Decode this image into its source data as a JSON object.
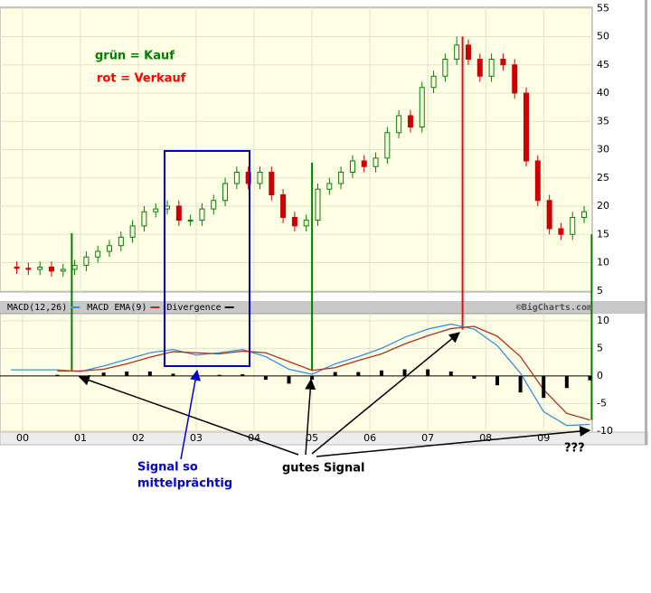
{
  "chart_data": [
    {
      "type": "candlestick",
      "xlim": [
        1999.61,
        2009.84
      ],
      "xticks": [
        2000,
        2001,
        2002,
        2003,
        2004,
        2005,
        2006,
        2007,
        2008,
        2009
      ],
      "ylim": [
        4.8,
        55.2
      ],
      "yticks": [
        5,
        10,
        15,
        20,
        25,
        30,
        35,
        40,
        45,
        50,
        55
      ],
      "grid": true,
      "up_color": "#008000",
      "down_color": "#cc0000",
      "x": [
        1999.9,
        2000.1,
        2000.3,
        2000.5,
        2000.7,
        2000.9,
        2001.1,
        2001.3,
        2001.5,
        2001.7,
        2001.9,
        2002.1,
        2002.3,
        2002.5,
        2002.7,
        2002.9,
        2003.1,
        2003.3,
        2003.5,
        2003.7,
        2003.9,
        2004.1,
        2004.3,
        2004.5,
        2004.7,
        2004.9,
        2005.1,
        2005.3,
        2005.5,
        2005.7,
        2005.9,
        2006.1,
        2006.3,
        2006.5,
        2006.7,
        2006.9,
        2007.1,
        2007.3,
        2007.5,
        2007.7,
        2007.9,
        2008.1,
        2008.3,
        2008.5,
        2008.7,
        2008.9,
        2009.1,
        2009.3,
        2009.5,
        2009.7
      ],
      "open": [
        9.2,
        9,
        8.8,
        9.2,
        8.5,
        8.8,
        9.5,
        11,
        12,
        13,
        14.5,
        16.5,
        19,
        19.5,
        20,
        17.5,
        17.5,
        19.5,
        21,
        24,
        26,
        24,
        26,
        22,
        18,
        16.5,
        17.5,
        23,
        24,
        26,
        28,
        27,
        28.5,
        33,
        36,
        34,
        41,
        43,
        46,
        48.5,
        46,
        43,
        46,
        45,
        40,
        28,
        21,
        16,
        15,
        18
      ],
      "high": [
        10.2,
        10,
        10.2,
        10.2,
        9.8,
        10.5,
        12,
        13,
        14,
        15.5,
        17.5,
        20,
        20.5,
        21,
        21,
        18.5,
        20.5,
        22,
        25,
        27,
        27,
        27,
        27,
        23,
        19,
        18.5,
        24,
        25,
        27,
        29,
        29,
        29.5,
        34,
        37,
        37,
        42,
        44,
        47,
        50,
        49.5,
        47,
        47,
        47,
        46,
        41,
        29,
        22,
        17,
        19,
        20
      ],
      "low": [
        8,
        7.8,
        7.8,
        7.5,
        7.5,
        7.8,
        8.5,
        10,
        11,
        12,
        13.5,
        15.5,
        18,
        18.5,
        16.5,
        16.5,
        16.5,
        18.5,
        20,
        23,
        23,
        23,
        21,
        17,
        15.5,
        15.5,
        16.5,
        22,
        23,
        25,
        26,
        26,
        27.5,
        32,
        33,
        33,
        40,
        42,
        45,
        45,
        42,
        42,
        44,
        39,
        27,
        20,
        15,
        14,
        14,
        17
      ],
      "close": [
        9,
        8.8,
        9.2,
        8.5,
        8.8,
        9.5,
        11,
        12,
        13,
        14.5,
        16.5,
        19,
        19.5,
        20,
        17.5,
        17.5,
        19.5,
        21,
        24,
        26,
        24,
        26,
        22,
        18,
        16.5,
        17.5,
        23,
        24,
        26,
        28,
        27,
        28.5,
        33,
        36,
        34,
        41,
        43,
        46,
        48.5,
        46,
        43,
        46,
        45,
        40,
        28,
        21,
        16,
        15,
        18,
        19
      ],
      "signals": [
        {
          "x": 2000.85,
          "color": "#008000",
          "top": 15.2,
          "bottom": 1
        },
        {
          "x": 2005.0,
          "color": "#008000",
          "top": 27.7,
          "bottom": 1
        },
        {
          "x": 2007.6,
          "color": "#ff0000",
          "top": 50,
          "bottom": 8.4
        },
        {
          "x": 2009.83,
          "color": "#008000",
          "top": 15,
          "bottom": -8
        }
      ],
      "annotations": [
        {
          "text": "grün = Kauf",
          "color": "#008000"
        },
        {
          "text": "rot = Verkauf",
          "color": "#ff0000"
        },
        {
          "text": "Signal so",
          "color": "#0000cc"
        },
        {
          "text": "mittelprächtig",
          "color": "#0000cc"
        },
        {
          "text": "gutes Signal",
          "color": "#000000"
        },
        {
          "text": "???",
          "color": "#000000"
        }
      ]
    },
    {
      "type": "macd",
      "source": "©BigCharts.com",
      "xlim": [
        1999.61,
        2009.84
      ],
      "xticks": [
        {
          "value": 2000,
          "label": "00"
        },
        {
          "value": 2001,
          "label": "01"
        },
        {
          "value": 2002,
          "label": "02"
        },
        {
          "value": 2003,
          "label": "03"
        },
        {
          "value": 2004,
          "label": "04"
        },
        {
          "value": 2005,
          "label": "05"
        },
        {
          "value": 2006,
          "label": "06"
        },
        {
          "value": 2007,
          "label": "07"
        },
        {
          "value": 2008,
          "label": "08"
        },
        {
          "value": 2009,
          "label": "09"
        }
      ],
      "ylim": [
        -10.2,
        11.3
      ],
      "yticks": [
        10,
        5,
        0,
        -5,
        -10
      ],
      "grid": true,
      "x": [
        1999.8,
        2000.2,
        2000.6,
        2001.0,
        2001.4,
        2001.8,
        2002.2,
        2002.6,
        2003.0,
        2003.4,
        2003.8,
        2004.2,
        2004.6,
        2005.0,
        2005.4,
        2005.8,
        2006.2,
        2006.6,
        2007.0,
        2007.4,
        2007.8,
        2008.2,
        2008.6,
        2009.0,
        2009.4,
        2009.8
      ],
      "series": [
        {
          "name": "MACD(12,26)",
          "kind": "line",
          "color": "#3a8ee6",
          "values": [
            1.1,
            1.1,
            1.1,
            0.8,
            1.8,
            3.0,
            4.2,
            4.8,
            3.8,
            4.2,
            4.8,
            3.5,
            1.2,
            0.3,
            2.2,
            3.5,
            5.0,
            7.0,
            8.5,
            9.4,
            8.5,
            5.5,
            0.5,
            -6.5,
            -9.0,
            -8.8
          ]
        },
        {
          "name": "MACD EMA(9)",
          "kind": "line",
          "color": "#b03020",
          "values": [
            null,
            null,
            0.9,
            0.9,
            1.2,
            2.2,
            3.4,
            4.4,
            4.2,
            4.0,
            4.5,
            4.2,
            2.6,
            1.0,
            1.5,
            2.8,
            4.0,
            5.8,
            7.3,
            8.6,
            9.0,
            7.2,
            3.5,
            -2.5,
            -6.8,
            -8.0
          ]
        },
        {
          "name": "Divergence",
          "kind": "bar",
          "color": "#000000",
          "values": [
            null,
            null,
            0.2,
            -0.1,
            0.6,
            0.8,
            0.8,
            0.4,
            -0.4,
            0.2,
            0.3,
            -0.7,
            -1.4,
            -0.7,
            0.7,
            0.7,
            1.0,
            1.2,
            1.2,
            0.8,
            -0.5,
            -1.7,
            -3.0,
            -4.0,
            -2.2,
            -0.8
          ]
        }
      ]
    }
  ]
}
